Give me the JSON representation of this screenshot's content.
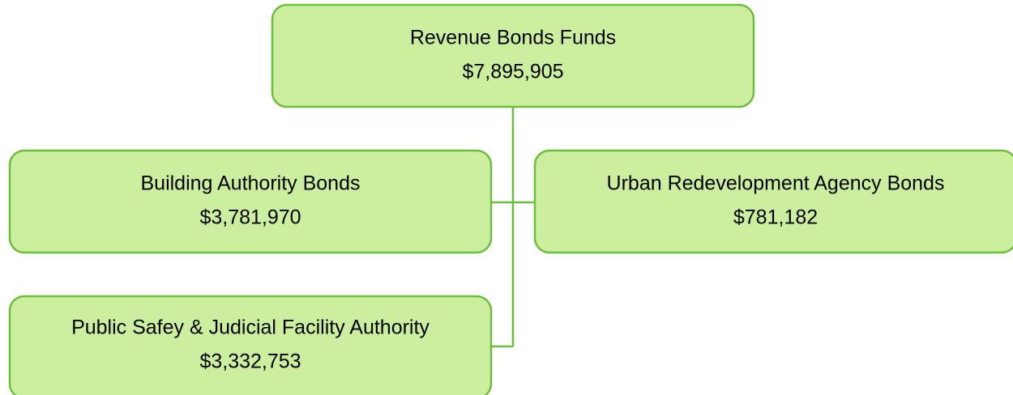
{
  "nodes": [
    {
      "label": "Revenue Bonds Funds",
      "amount": "$7,895,905"
    },
    {
      "label": "Building Authority Bonds",
      "amount": "$3,781,970"
    },
    {
      "label": "Urban Redevelopment Agency Bonds",
      "amount": "$781,182"
    },
    {
      "label": "Public Safey & Judicial Facility Authority",
      "amount": "$3,332,753"
    }
  ]
}
